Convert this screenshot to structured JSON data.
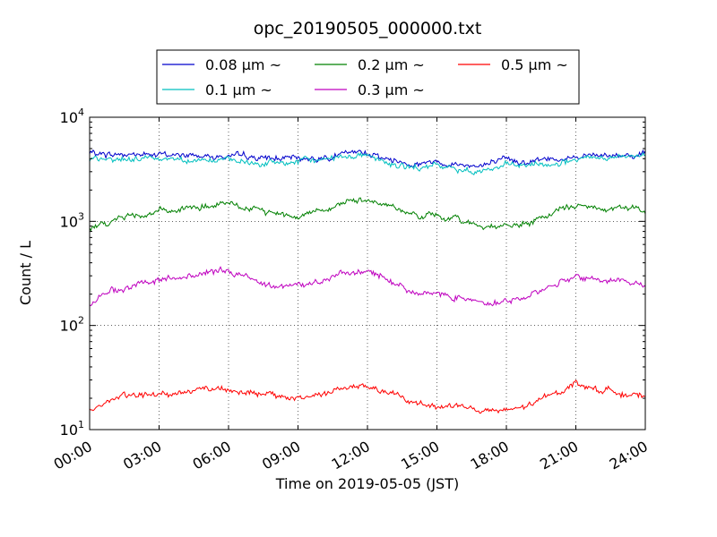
{
  "chart_data": {
    "type": "line",
    "title": "opc_20190505_000000.txt",
    "xlabel": "Time on 2019-05-05 (JST)",
    "ylabel": "Count / L",
    "yscale": "log",
    "xlim": [
      "00:00",
      "24:00"
    ],
    "ylim": [
      10,
      10000
    ],
    "grid": true,
    "legend_position": "top-center",
    "x_ticks": [
      "00:00",
      "03:00",
      "06:00",
      "09:00",
      "12:00",
      "15:00",
      "18:00",
      "21:00",
      "24:00"
    ],
    "y_ticks": [
      {
        "value": 10,
        "base": "10",
        "exp": "1"
      },
      {
        "value": 100,
        "base": "10",
        "exp": "2"
      },
      {
        "value": 1000,
        "base": "10",
        "exp": "3"
      },
      {
        "value": 10000,
        "base": "10",
        "exp": "4"
      }
    ],
    "x": [
      "00:00",
      "01:00",
      "02:00",
      "03:00",
      "04:00",
      "05:00",
      "06:00",
      "07:00",
      "08:00",
      "09:00",
      "10:00",
      "11:00",
      "12:00",
      "13:00",
      "14:00",
      "15:00",
      "16:00",
      "17:00",
      "18:00",
      "19:00",
      "20:00",
      "21:00",
      "22:00",
      "23:00",
      "24:00"
    ],
    "series": [
      {
        "name": "0.08 μm ~",
        "color": "#0000cc",
        "values": [
          4500,
          4400,
          4400,
          4350,
          4300,
          4300,
          4200,
          4100,
          4000,
          4000,
          4100,
          4400,
          4600,
          3900,
          3600,
          3800,
          3500,
          3500,
          3800,
          3800,
          4000,
          4200,
          4300,
          4400,
          4500
        ]
      },
      {
        "name": "0.1 μm ~",
        "color": "#00bfbf",
        "values": [
          3800,
          3900,
          4000,
          4100,
          4000,
          3900,
          3800,
          3600,
          3600,
          3700,
          3900,
          4300,
          4400,
          3500,
          3200,
          3400,
          3100,
          3100,
          3400,
          3400,
          3600,
          3800,
          4000,
          4100,
          4200
        ]
      },
      {
        "name": "0.2 μm ~",
        "color": "#008000",
        "values": [
          850,
          1050,
          1150,
          1250,
          1300,
          1400,
          1450,
          1300,
          1200,
          1150,
          1300,
          1500,
          1650,
          1400,
          1150,
          1100,
          1050,
          900,
          900,
          950,
          1200,
          1450,
          1300,
          1350,
          1300
        ]
      },
      {
        "name": "0.3 μm ~",
        "color": "#bf00bf",
        "values": [
          160,
          220,
          240,
          270,
          290,
          320,
          330,
          280,
          250,
          240,
          270,
          310,
          330,
          270,
          210,
          200,
          190,
          170,
          170,
          190,
          250,
          300,
          270,
          270,
          250
        ]
      },
      {
        "name": "0.5 μm ~",
        "color": "#ff0000",
        "values": [
          15,
          20,
          21,
          22,
          23,
          25,
          25,
          22,
          21,
          20,
          22,
          25,
          26,
          22,
          18,
          17,
          17,
          15,
          15,
          17,
          22,
          28,
          24,
          23,
          20
        ]
      }
    ]
  }
}
